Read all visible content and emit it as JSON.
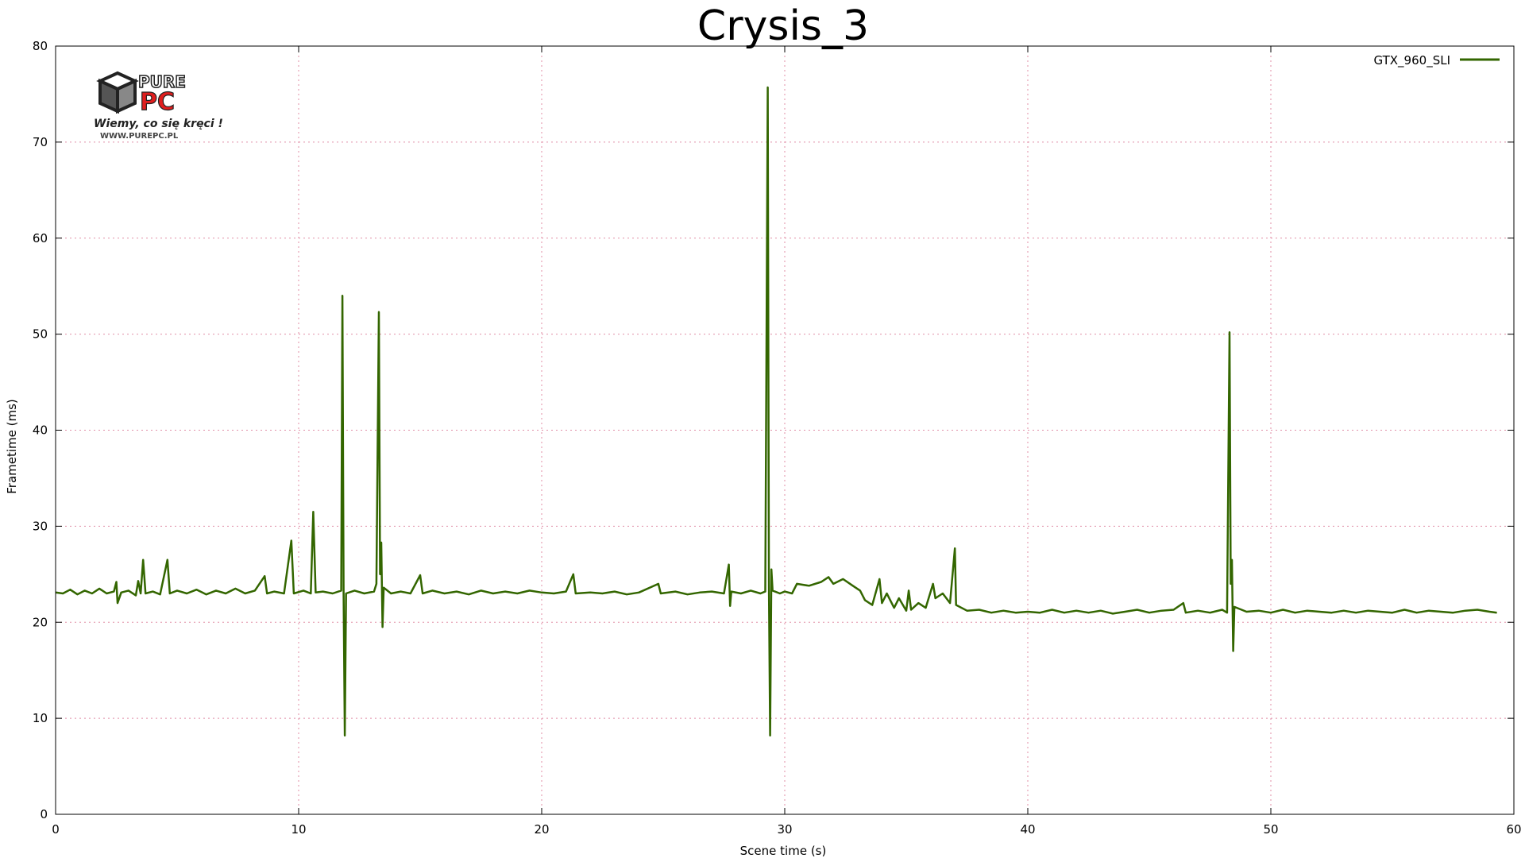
{
  "chart_data": {
    "type": "line",
    "title": "Crysis_3",
    "xlabel": "Scene time (s)",
    "ylabel": "Frametime (ms)",
    "xlim": [
      0,
      60
    ],
    "ylim": [
      0,
      80
    ],
    "xticks": [
      0,
      10,
      20,
      30,
      40,
      50,
      60
    ],
    "yticks": [
      0,
      10,
      20,
      30,
      40,
      50,
      60,
      70,
      80
    ],
    "grid": true,
    "legend_position": "top-right",
    "series": [
      {
        "name": "GTX_960_SLI",
        "color": "#336600",
        "points": [
          [
            0.0,
            23.1
          ],
          [
            0.3,
            23.0
          ],
          [
            0.6,
            23.4
          ],
          [
            0.9,
            22.9
          ],
          [
            1.2,
            23.3
          ],
          [
            1.5,
            23.0
          ],
          [
            1.8,
            23.5
          ],
          [
            2.1,
            23.0
          ],
          [
            2.4,
            23.2
          ],
          [
            2.5,
            24.2
          ],
          [
            2.55,
            22.0
          ],
          [
            2.7,
            23.1
          ],
          [
            3.0,
            23.3
          ],
          [
            3.3,
            22.8
          ],
          [
            3.4,
            24.3
          ],
          [
            3.5,
            23.0
          ],
          [
            3.6,
            26.5
          ],
          [
            3.7,
            23.0
          ],
          [
            4.0,
            23.2
          ],
          [
            4.3,
            22.9
          ],
          [
            4.6,
            26.5
          ],
          [
            4.7,
            23.0
          ],
          [
            5.0,
            23.3
          ],
          [
            5.4,
            23.0
          ],
          [
            5.8,
            23.4
          ],
          [
            6.2,
            22.9
          ],
          [
            6.6,
            23.3
          ],
          [
            7.0,
            23.0
          ],
          [
            7.4,
            23.5
          ],
          [
            7.8,
            23.0
          ],
          [
            8.2,
            23.3
          ],
          [
            8.6,
            24.8
          ],
          [
            8.7,
            23.0
          ],
          [
            9.0,
            23.2
          ],
          [
            9.4,
            23.0
          ],
          [
            9.7,
            28.5
          ],
          [
            9.8,
            23.0
          ],
          [
            10.2,
            23.3
          ],
          [
            10.5,
            23.0
          ],
          [
            10.6,
            31.5
          ],
          [
            10.7,
            23.1
          ],
          [
            11.0,
            23.2
          ],
          [
            11.4,
            23.0
          ],
          [
            11.75,
            23.3
          ],
          [
            11.8,
            54.0
          ],
          [
            11.85,
            23.0
          ],
          [
            11.9,
            8.2
          ],
          [
            11.95,
            23.0
          ],
          [
            12.3,
            23.3
          ],
          [
            12.7,
            23.0
          ],
          [
            13.1,
            23.2
          ],
          [
            13.2,
            24.0
          ],
          [
            13.3,
            52.3
          ],
          [
            13.35,
            25.0
          ],
          [
            13.4,
            28.3
          ],
          [
            13.45,
            19.5
          ],
          [
            13.5,
            23.6
          ],
          [
            13.8,
            23.0
          ],
          [
            14.2,
            23.2
          ],
          [
            14.6,
            23.0
          ],
          [
            15.0,
            24.9
          ],
          [
            15.1,
            23.0
          ],
          [
            15.5,
            23.3
          ],
          [
            16.0,
            23.0
          ],
          [
            16.5,
            23.2
          ],
          [
            17.0,
            22.9
          ],
          [
            17.5,
            23.3
          ],
          [
            18.0,
            23.0
          ],
          [
            18.5,
            23.2
          ],
          [
            19.0,
            23.0
          ],
          [
            19.5,
            23.3
          ],
          [
            20.0,
            23.1
          ],
          [
            20.5,
            23.0
          ],
          [
            21.0,
            23.2
          ],
          [
            21.3,
            25.0
          ],
          [
            21.4,
            23.0
          ],
          [
            22.0,
            23.1
          ],
          [
            22.5,
            23.0
          ],
          [
            23.0,
            23.2
          ],
          [
            23.5,
            22.9
          ],
          [
            24.0,
            23.1
          ],
          [
            24.8,
            24.0
          ],
          [
            24.9,
            23.0
          ],
          [
            25.5,
            23.2
          ],
          [
            26.0,
            22.9
          ],
          [
            26.5,
            23.1
          ],
          [
            27.0,
            23.2
          ],
          [
            27.5,
            23.0
          ],
          [
            27.7,
            26.0
          ],
          [
            27.75,
            21.7
          ],
          [
            27.8,
            23.2
          ],
          [
            28.2,
            23.0
          ],
          [
            28.6,
            23.3
          ],
          [
            29.0,
            23.0
          ],
          [
            29.2,
            23.2
          ],
          [
            29.3,
            75.7
          ],
          [
            29.35,
            23.5
          ],
          [
            29.4,
            8.2
          ],
          [
            29.45,
            25.5
          ],
          [
            29.5,
            23.3
          ],
          [
            29.8,
            23.0
          ],
          [
            30.0,
            23.2
          ],
          [
            30.3,
            23.0
          ],
          [
            30.5,
            24.0
          ],
          [
            31.0,
            23.8
          ],
          [
            31.5,
            24.2
          ],
          [
            31.8,
            24.7
          ],
          [
            32.0,
            24.0
          ],
          [
            32.4,
            24.5
          ],
          [
            32.8,
            23.8
          ],
          [
            33.1,
            23.3
          ],
          [
            33.3,
            22.3
          ],
          [
            33.6,
            21.8
          ],
          [
            33.9,
            24.5
          ],
          [
            34.0,
            22.0
          ],
          [
            34.2,
            23.0
          ],
          [
            34.5,
            21.5
          ],
          [
            34.7,
            22.5
          ],
          [
            35.0,
            21.2
          ],
          [
            35.1,
            23.3
          ],
          [
            35.2,
            21.3
          ],
          [
            35.5,
            22.0
          ],
          [
            35.8,
            21.5
          ],
          [
            36.1,
            24.0
          ],
          [
            36.2,
            22.5
          ],
          [
            36.5,
            23.0
          ],
          [
            36.8,
            22.0
          ],
          [
            37.0,
            27.7
          ],
          [
            37.05,
            21.8
          ],
          [
            37.5,
            21.2
          ],
          [
            38.0,
            21.3
          ],
          [
            38.5,
            21.0
          ],
          [
            39.0,
            21.2
          ],
          [
            39.5,
            21.0
          ],
          [
            40.0,
            21.1
          ],
          [
            40.5,
            21.0
          ],
          [
            41.0,
            21.3
          ],
          [
            41.5,
            21.0
          ],
          [
            42.0,
            21.2
          ],
          [
            42.5,
            21.0
          ],
          [
            43.0,
            21.2
          ],
          [
            43.5,
            20.9
          ],
          [
            44.0,
            21.1
          ],
          [
            44.5,
            21.3
          ],
          [
            45.0,
            21.0
          ],
          [
            45.5,
            21.2
          ],
          [
            46.0,
            21.3
          ],
          [
            46.4,
            22.0
          ],
          [
            46.5,
            21.0
          ],
          [
            47.0,
            21.2
          ],
          [
            47.5,
            21.0
          ],
          [
            48.0,
            21.3
          ],
          [
            48.2,
            21.0
          ],
          [
            48.3,
            50.2
          ],
          [
            48.35,
            24.0
          ],
          [
            48.4,
            26.5
          ],
          [
            48.45,
            17.0
          ],
          [
            48.5,
            21.6
          ],
          [
            49.0,
            21.1
          ],
          [
            49.5,
            21.2
          ],
          [
            50.0,
            21.0
          ],
          [
            50.5,
            21.3
          ],
          [
            51.0,
            21.0
          ],
          [
            51.5,
            21.2
          ],
          [
            52.0,
            21.1
          ],
          [
            52.5,
            21.0
          ],
          [
            53.0,
            21.2
          ],
          [
            53.5,
            21.0
          ],
          [
            54.0,
            21.2
          ],
          [
            54.5,
            21.1
          ],
          [
            55.0,
            21.0
          ],
          [
            55.5,
            21.3
          ],
          [
            56.0,
            21.0
          ],
          [
            56.5,
            21.2
          ],
          [
            57.0,
            21.1
          ],
          [
            57.5,
            21.0
          ],
          [
            58.0,
            21.2
          ],
          [
            58.5,
            21.3
          ],
          [
            59.0,
            21.1
          ],
          [
            59.3,
            21.0
          ]
        ]
      }
    ]
  },
  "logo": {
    "brand_top": "PURE",
    "brand_bottom": "PC",
    "tagline": "Wiemy, co się kręci !",
    "url": "WWW.PUREPC.PL"
  }
}
